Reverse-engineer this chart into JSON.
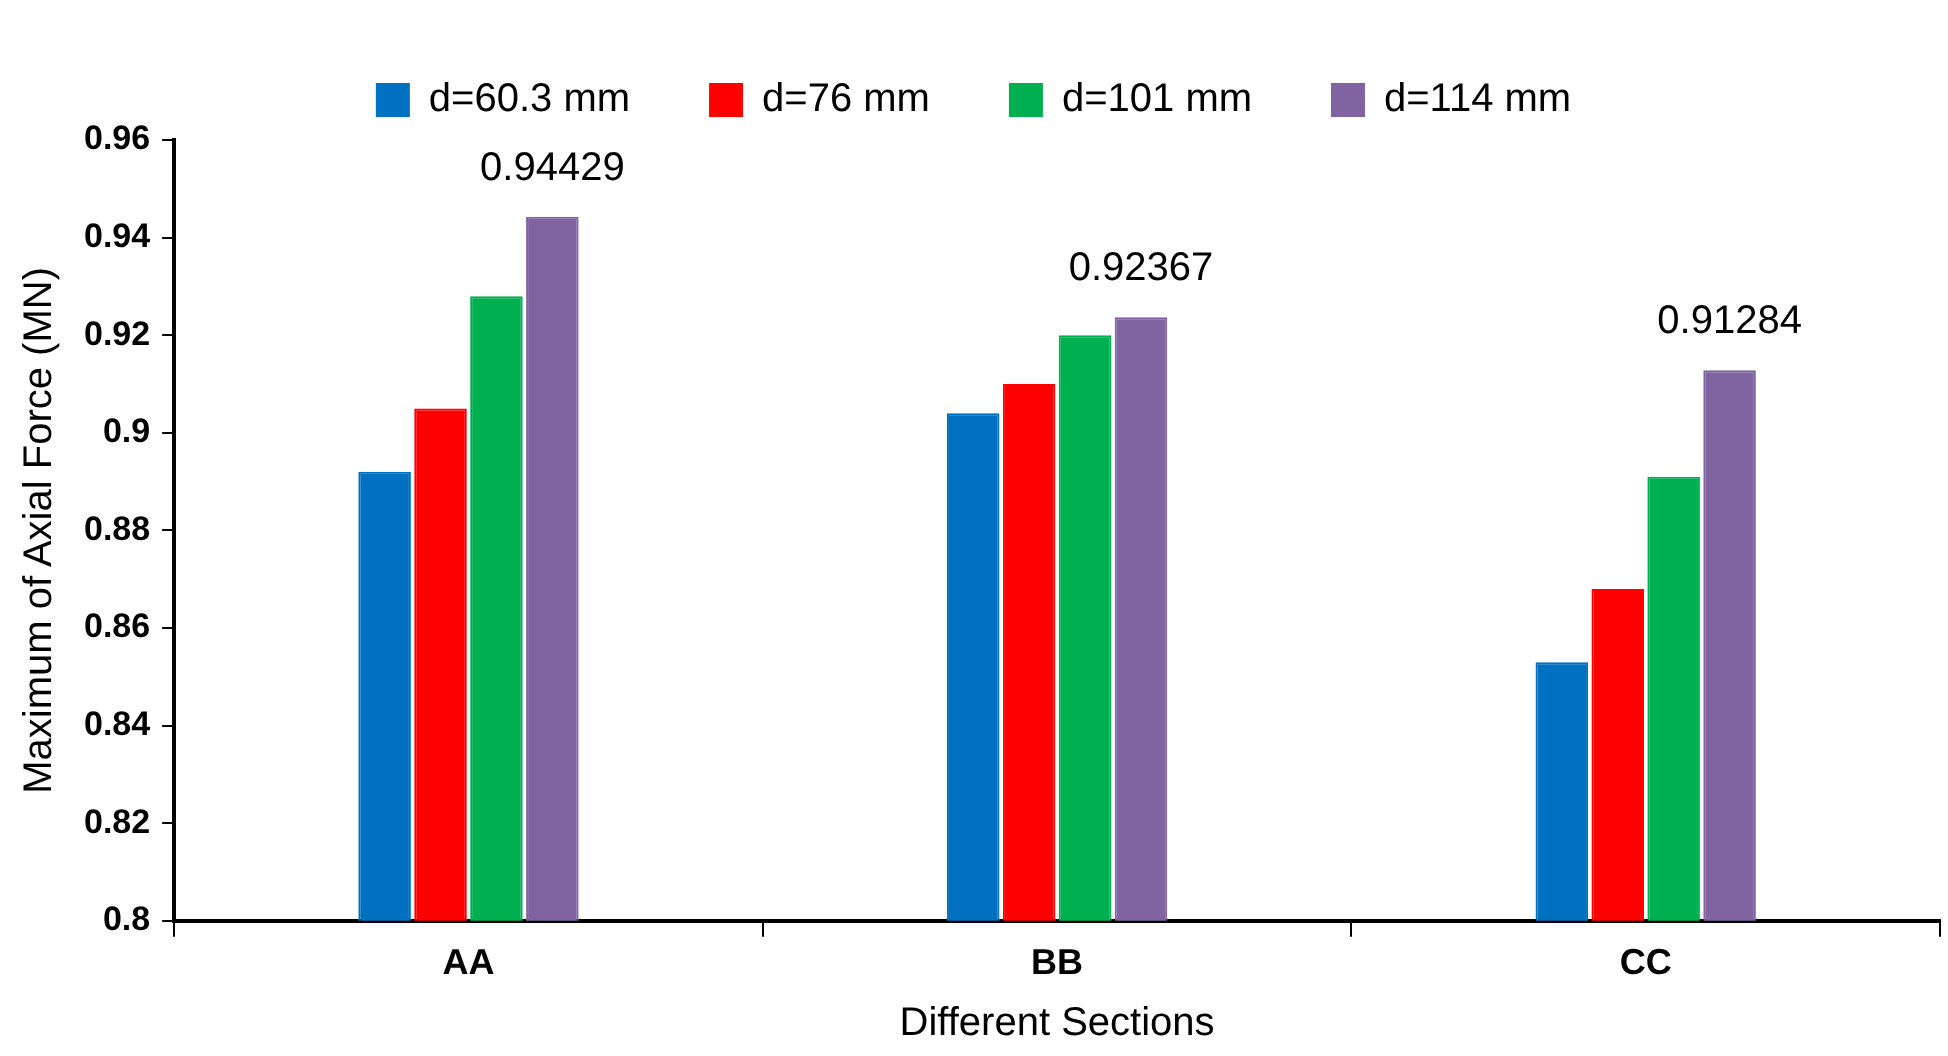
{
  "chart_data": {
    "type": "bar",
    "xlabel": "Different Sections",
    "ylabel": "Maximum of Axial Force (MN)",
    "categories": [
      "AA",
      "BB",
      "CC"
    ],
    "series": [
      {
        "name": "d=60.3 mm",
        "color": "#0070c0",
        "values": [
          0.892,
          0.904,
          0.853
        ]
      },
      {
        "name": "d=76 mm",
        "color": "#ff0000",
        "values": [
          0.905,
          0.91,
          0.868
        ]
      },
      {
        "name": "d=101 mm",
        "color": "#00b050",
        "values": [
          0.928,
          0.92,
          0.891
        ]
      },
      {
        "name": "d=114 mm",
        "color": "#8064a2",
        "values": [
          0.94429,
          0.92367,
          0.91284
        ],
        "value_labels": [
          "0.94429",
          "0.92367",
          "0.91284"
        ]
      }
    ],
    "ylim": [
      0.8,
      0.96
    ],
    "yticks": [
      0.8,
      0.82,
      0.84,
      0.86,
      0.88,
      0.9,
      0.92,
      0.94,
      0.96
    ],
    "legend": "top"
  }
}
